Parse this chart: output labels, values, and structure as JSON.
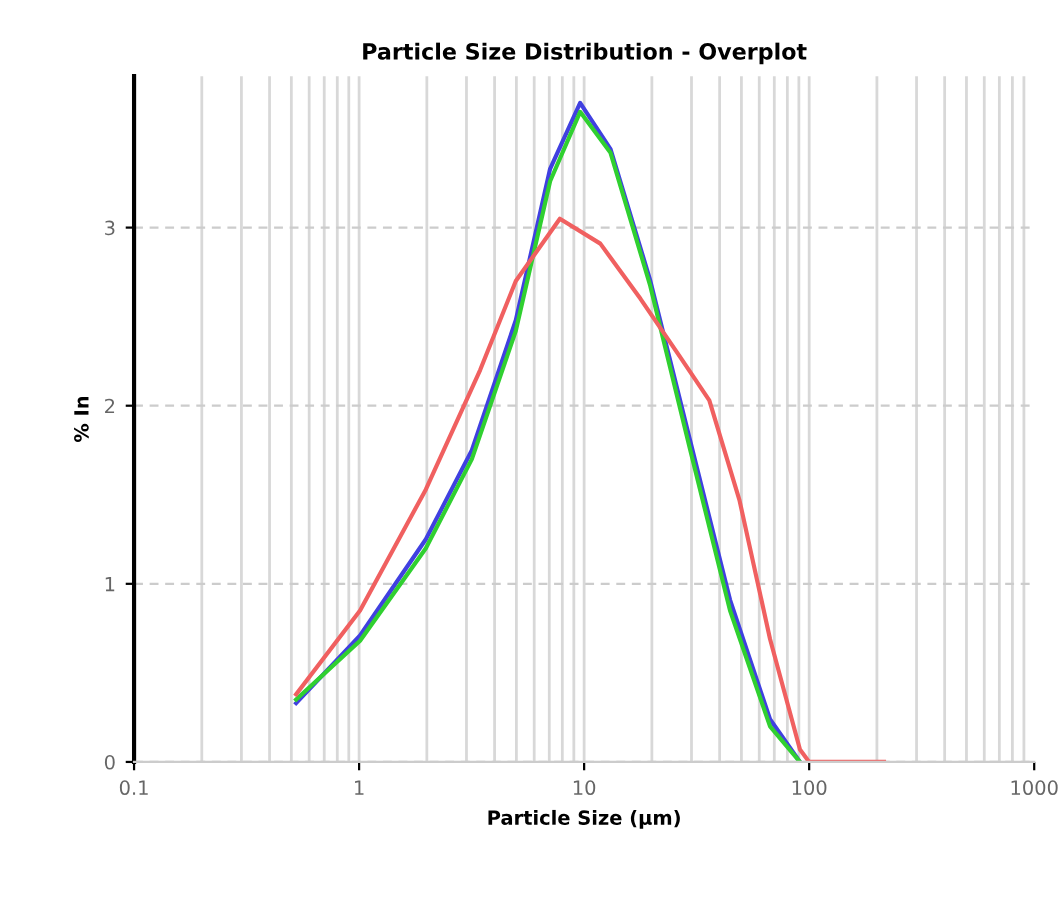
{
  "chart_data": {
    "type": "line",
    "title": "Particle Size Distribution - Overplot",
    "xlabel": "Particle Size (µm)",
    "ylabel": "% In",
    "log": "x",
    "xlim": [
      0.1,
      1000
    ],
    "xticks": [
      0.1,
      1,
      10,
      100,
      1000
    ],
    "ylim": [
      0,
      3.85
    ],
    "yticks": [
      0,
      1,
      2,
      3
    ],
    "grid": true,
    "marker": "none",
    "line_style": "solid",
    "series": [
      {
        "color": "#4040e0",
        "x": [
          0.525,
          1.01,
          1.98,
          3.17,
          4.97,
          7.06,
          9.6,
          13.1,
          19.6,
          29.5,
          44.5,
          67,
          91
        ],
        "values": [
          0.33,
          0.71,
          1.25,
          1.75,
          2.48,
          3.33,
          3.7,
          3.44,
          2.71,
          1.81,
          0.91,
          0.24,
          0
        ]
      },
      {
        "color": "#30d030",
        "x": [
          0.525,
          1.01,
          1.98,
          3.17,
          4.97,
          7.06,
          9.6,
          13.1,
          19.6,
          29.5,
          44.5,
          67,
          91
        ],
        "values": [
          0.35,
          0.68,
          1.2,
          1.7,
          2.42,
          3.26,
          3.65,
          3.42,
          2.68,
          1.76,
          0.85,
          0.2,
          0
        ]
      },
      {
        "color": "#f06060",
        "x": [
          0.525,
          1.01,
          1.98,
          3.45,
          4.97,
          7.8,
          11.8,
          17.8,
          26.5,
          36,
          49,
          67,
          91,
          100,
          215
        ],
        "values": [
          0.38,
          0.85,
          1.53,
          2.2,
          2.7,
          3.05,
          2.91,
          2.6,
          2.28,
          2.03,
          1.47,
          0.69,
          0.07,
          0,
          0
        ]
      }
    ]
  }
}
